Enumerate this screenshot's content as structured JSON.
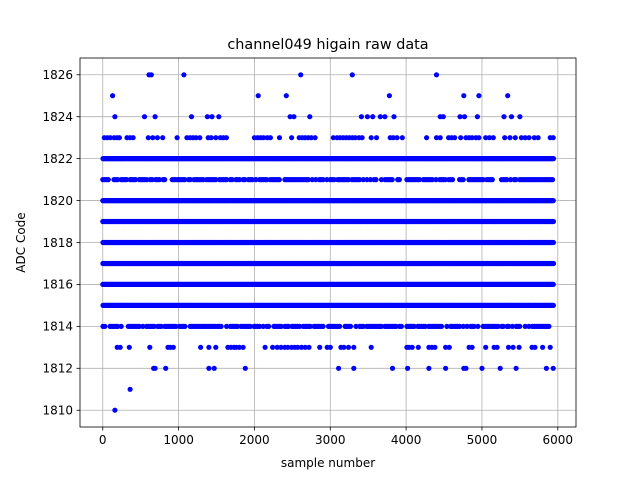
{
  "chart_data": {
    "type": "scatter",
    "title": "channel049 higain raw data",
    "xlabel": "sample number",
    "ylabel": "ADC Code",
    "xlim": [
      -300,
      6240
    ],
    "ylim": [
      1809.2,
      1826.8
    ],
    "xticks": [
      0,
      1000,
      2000,
      3000,
      4000,
      5000,
      6000
    ],
    "yticks": [
      1810,
      1812,
      1814,
      1816,
      1818,
      1820,
      1822,
      1824,
      1826
    ],
    "grid": true,
    "legend": "none",
    "marker_color": "#0000ff",
    "series_levels": [
      {
        "y": 1822,
        "x_range": [
          0,
          5940
        ],
        "density": "dense"
      },
      {
        "y": 1821,
        "x_range": [
          0,
          5940
        ],
        "density": "medium"
      },
      {
        "y": 1820,
        "x_range": [
          0,
          5940
        ],
        "density": "dense"
      },
      {
        "y": 1819,
        "x_range": [
          0,
          5940
        ],
        "density": "dense"
      },
      {
        "y": 1818,
        "x_range": [
          0,
          5940
        ],
        "density": "dense"
      },
      {
        "y": 1817,
        "x_range": [
          0,
          5940
        ],
        "density": "dense"
      },
      {
        "y": 1816,
        "x_range": [
          0,
          5940
        ],
        "density": "dense"
      },
      {
        "y": 1815,
        "x_range": [
          0,
          5940
        ],
        "density": "dense"
      },
      {
        "y": 1814,
        "x_range": [
          0,
          5940
        ],
        "density": "medium"
      }
    ],
    "sparse_points": [
      {
        "y": 1826,
        "x": [
          610,
          640,
          1070,
          2610,
          3290,
          4400
        ]
      },
      {
        "y": 1825,
        "x": [
          130,
          2050,
          2420,
          3780,
          4760,
          4960,
          5340
        ]
      },
      {
        "y": 1824,
        "x": [
          160,
          550,
          690,
          1170,
          1380,
          1440,
          1530,
          2470,
          2520,
          2730,
          3410,
          3490,
          3560,
          3660,
          3720,
          3840,
          4450,
          4490,
          4710,
          4770,
          4940,
          5290,
          5390,
          5500
        ],
        "note_omit": true
      },
      {
        "y": 1823,
        "x": [
          20,
          60,
          100,
          150,
          190,
          220,
          320,
          360,
          400,
          600,
          660,
          720,
          790,
          980,
          1110,
          1150,
          1190,
          1230,
          1280,
          1390,
          1430,
          1490,
          1550,
          1590,
          1630,
          2000,
          2040,
          2080,
          2120,
          2170,
          2210,
          2330,
          2490,
          2590,
          2630,
          2670,
          2710,
          2750,
          2800,
          3040,
          3090,
          3130,
          3170,
          3210,
          3250,
          3290,
          3330,
          3380,
          3420,
          3540,
          3610,
          3790,
          3830,
          3880,
          3950,
          4270,
          4400,
          4450,
          4560,
          4600,
          4640,
          4720,
          4790,
          4830,
          4870,
          4920,
          4960,
          5050,
          5100,
          5150,
          5300,
          5370,
          5440,
          5520,
          5570,
          5620,
          5690,
          5740,
          5900,
          5940
        ]
      },
      {
        "y": 1813,
        "x": [
          190,
          230,
          350,
          620,
          860,
          890,
          930,
          1290,
          1400,
          1490,
          1650,
          1690,
          1730,
          1760,
          1800,
          1850,
          2140,
          2240,
          2300,
          2350,
          2400,
          2440,
          2490,
          2530,
          2570,
          2620,
          2670,
          2720,
          2860,
          2960,
          3000,
          3140,
          3180,
          3240,
          3310,
          3540,
          4010,
          4040,
          4080,
          4160,
          4300,
          4340,
          4380,
          4520,
          4570,
          4830,
          4870,
          5050,
          5160,
          5200,
          5350,
          5410,
          5490,
          5660,
          5700,
          5800,
          5900
        ]
      },
      {
        "y": 1812,
        "x": [
          670,
          690,
          830,
          1400,
          1470,
          1880,
          3110,
          3310,
          3820,
          4020,
          4300,
          4520,
          4760,
          4790,
          5000,
          5240,
          5450,
          5850,
          5940
        ]
      },
      {
        "y": 1811,
        "x": [
          360
        ]
      },
      {
        "y": 1810,
        "x": [
          160
        ]
      }
    ]
  }
}
